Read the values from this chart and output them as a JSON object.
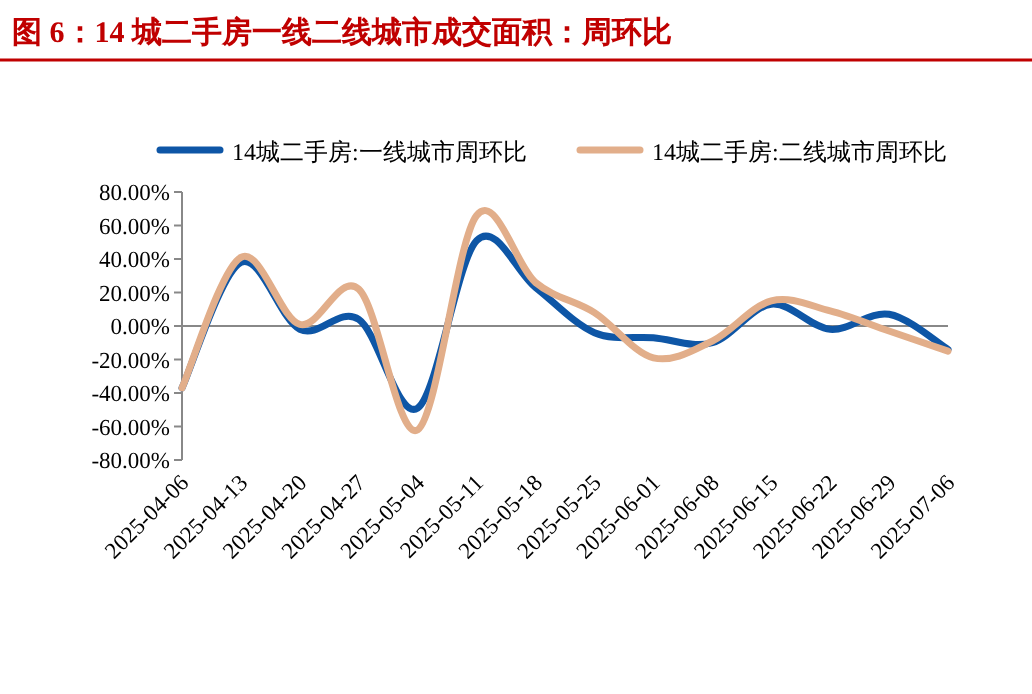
{
  "chart_data": {
    "type": "line",
    "title": "图 6：14 城二手房一线二线城市成交面积：周环比",
    "categories": [
      "2025-04-06",
      "2025-04-13",
      "2025-04-20",
      "2025-04-27",
      "2025-05-04",
      "2025-05-11",
      "2025-05-18",
      "2025-05-25",
      "2025-06-01",
      "2025-06-08",
      "2025-06-15",
      "2025-06-22",
      "2025-06-29",
      "2025-07-06"
    ],
    "series": [
      {
        "name": "14城二手房:一线城市周环比",
        "color": "#0e56a6",
        "values": [
          -37,
          38,
          -2,
          4,
          -49,
          51,
          23,
          -4,
          -7,
          -10,
          13,
          -2,
          7,
          -14
        ]
      },
      {
        "name": "14城二手房:二线城市周环比",
        "color": "#e2ae8a",
        "values": [
          -37,
          41,
          1,
          22,
          -62,
          66,
          26,
          8,
          -19,
          -9,
          15,
          9,
          -3,
          -15
        ]
      }
    ],
    "ylim": [
      -80,
      80
    ],
    "yticks": [
      {
        "value": 80,
        "label": "80.00%"
      },
      {
        "value": 60,
        "label": "60.00%"
      },
      {
        "value": 40,
        "label": "40.00%"
      },
      {
        "value": 20,
        "label": "20.00%"
      },
      {
        "value": 0,
        "label": "0.00%"
      },
      {
        "value": -20,
        "label": "-20.00%"
      },
      {
        "value": -40,
        "label": "-40.00%"
      },
      {
        "value": -60,
        "label": "-60.00%"
      },
      {
        "value": -80,
        "label": "-80.00%"
      }
    ],
    "legend": "top",
    "marker": "none",
    "line_style": "solid"
  }
}
